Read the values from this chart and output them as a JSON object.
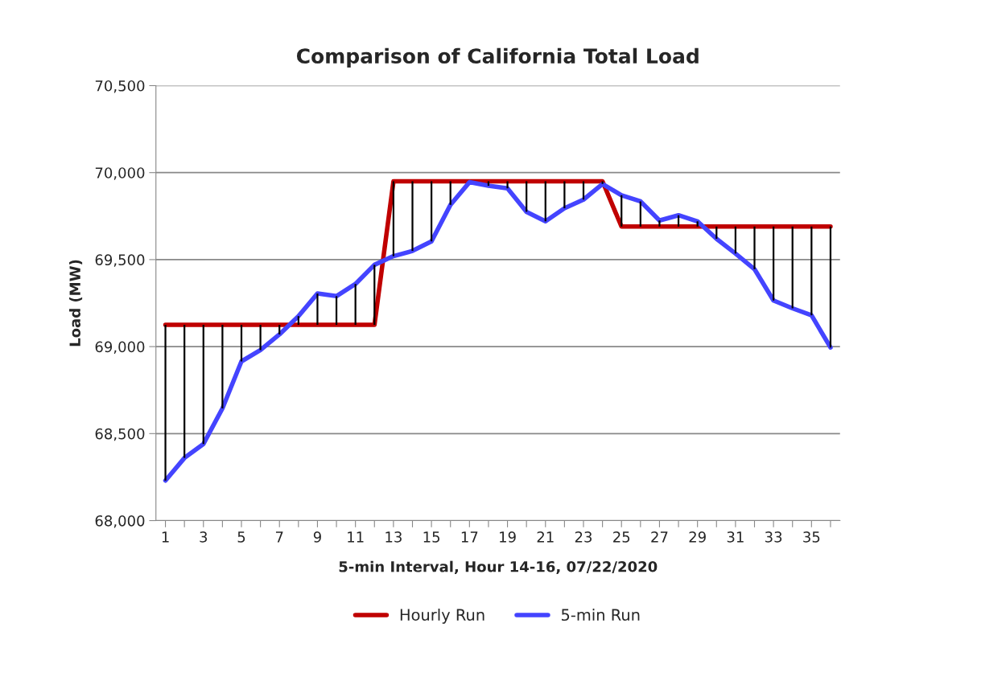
{
  "chart_data": {
    "type": "line",
    "title": "Comparison of California Total Load",
    "xlabel": "5-min Interval, Hour 14-16, 07/22/2020",
    "ylabel": "Load (MW)",
    "categories": [
      "1",
      null,
      "3",
      null,
      "5",
      null,
      "7",
      null,
      "9",
      null,
      "11",
      null,
      "13",
      null,
      "15",
      null,
      "17",
      null,
      "19",
      null,
      "21",
      null,
      "23",
      null,
      "25",
      null,
      "27",
      null,
      "29",
      null,
      "31",
      null,
      "33",
      null,
      "35",
      null
    ],
    "series": [
      {
        "name": "Hourly Run",
        "color": "#c00000",
        "values": [
          69125,
          69125,
          69125,
          69125,
          69125,
          69125,
          69125,
          69125,
          69125,
          69125,
          69125,
          69125,
          69950,
          69950,
          69950,
          69950,
          69950,
          69950,
          69950,
          69950,
          69950,
          69950,
          69950,
          69950,
          69690,
          69690,
          69690,
          69690,
          69690,
          69690,
          69690,
          69690,
          69690,
          69690,
          69690,
          69690
        ]
      },
      {
        "name": "5-min Run",
        "color": "#4444ff",
        "values": [
          68230,
          68360,
          68440,
          68645,
          68915,
          68980,
          69070,
          69175,
          69305,
          69290,
          69360,
          69470,
          69520,
          69550,
          69605,
          69815,
          69945,
          69925,
          69910,
          69775,
          69720,
          69795,
          69845,
          69935,
          69870,
          69835,
          69725,
          69755,
          69720,
          69620,
          69535,
          69445,
          69265,
          69220,
          69180,
          68995
        ],
        "errors": [
          [
            68230,
            69125
          ],
          [
            68360,
            69125
          ],
          [
            68440,
            69125
          ],
          [
            68645,
            69125
          ],
          [
            68915,
            69125
          ],
          [
            68980,
            69125
          ],
          [
            69070,
            69125
          ],
          [
            69125,
            69175
          ],
          [
            69125,
            69305
          ],
          [
            69125,
            69290
          ],
          [
            69125,
            69360
          ],
          [
            69125,
            69470
          ],
          [
            69520,
            69950
          ],
          [
            69550,
            69950
          ],
          [
            69605,
            69950
          ],
          [
            69815,
            69950
          ],
          null,
          [
            69925,
            69950
          ],
          [
            69910,
            69950
          ],
          [
            69775,
            69950
          ],
          [
            69720,
            69950
          ],
          [
            69795,
            69950
          ],
          [
            69845,
            69950
          ],
          [
            69935,
            69950
          ],
          [
            69690,
            69870
          ],
          [
            69690,
            69835
          ],
          [
            69690,
            69725
          ],
          [
            69690,
            69755
          ],
          [
            69690,
            69720
          ],
          [
            69620,
            69690
          ],
          [
            69535,
            69690
          ],
          [
            69445,
            69690
          ],
          [
            69265,
            69690
          ],
          [
            69220,
            69690
          ],
          [
            69180,
            69690
          ],
          [
            68995,
            69690
          ]
        ]
      }
    ],
    "ylim": [
      68000,
      70500
    ],
    "yticks": [
      {
        "value": 68000,
        "label": "68,000"
      },
      {
        "value": 68500,
        "label": "68,500"
      },
      {
        "value": 69000,
        "label": "69,000"
      },
      {
        "value": 69500,
        "label": "69,500"
      },
      {
        "value": 70000,
        "label": "70,000"
      },
      {
        "value": 70500,
        "label": "70,500"
      }
    ],
    "grid": "y",
    "legend": "bottom",
    "marker": "none",
    "line_style": "solid"
  }
}
